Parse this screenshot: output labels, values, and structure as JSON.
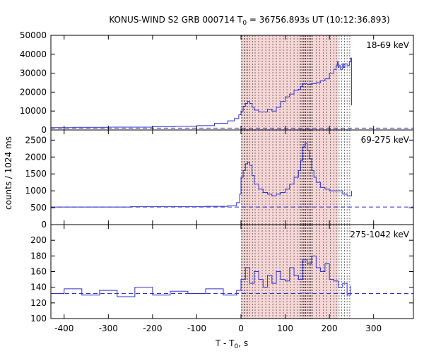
{
  "chart_data": {
    "type": "line",
    "title": "KONUS-WIND S2 GRB 000714 T",
    "title_sub": "0",
    "title_rest": " = 36756.893s UT (10:12:36.893)",
    "ylabel": "counts / 1024 ms",
    "xlabel_main": "T - T",
    "xlabel_sub": "0",
    "xlabel_rest": ", s",
    "xlim": [
      -430,
      390
    ],
    "x_ticks": [
      -400,
      -300,
      -200,
      -100,
      0,
      100,
      200,
      300
    ],
    "grid": false,
    "series_color": "#3030cc",
    "highlight_color": "#f7d6d6",
    "highlight_range": [
      0,
      220
    ],
    "dashed_line_times": [
      2,
      8,
      14,
      20,
      26,
      32,
      40,
      48,
      56,
      64,
      72,
      80,
      88,
      96,
      104,
      112,
      120,
      128,
      134,
      138,
      142,
      146,
      150,
      154,
      158,
      162,
      170,
      178,
      186,
      194,
      202,
      210,
      216,
      222,
      228,
      234,
      240,
      246
    ],
    "dashed_line_dark_times": [
      2,
      8,
      14,
      134,
      138,
      142,
      146,
      150,
      154,
      158
    ],
    "panels": [
      {
        "label": "18-69 keV",
        "ylim": [
          0,
          50000
        ],
        "y_ticks": [
          0,
          10000,
          20000,
          30000,
          40000,
          50000
        ],
        "background_level": 1000,
        "x": [
          -430,
          -380,
          -300,
          -200,
          -150,
          -100,
          -60,
          -30,
          -15,
          -5,
          0,
          5,
          10,
          15,
          20,
          25,
          30,
          40,
          50,
          60,
          70,
          80,
          90,
          100,
          110,
          120,
          130,
          135,
          140,
          150,
          160,
          170,
          180,
          190,
          200,
          210,
          215,
          218,
          220,
          222,
          225,
          230,
          232,
          235,
          240,
          245,
          248,
          250
        ],
        "y": [
          1200,
          1400,
          1500,
          1700,
          1900,
          2300,
          3500,
          4800,
          6000,
          8000,
          10000,
          12500,
          14000,
          15000,
          14000,
          12000,
          10500,
          9500,
          9500,
          11000,
          10000,
          12000,
          15000,
          17500,
          19000,
          21000,
          21500,
          23000,
          24500,
          24000,
          24500,
          25000,
          26000,
          27000,
          30000,
          32000,
          34000,
          36000,
          33000,
          34000,
          32000,
          35000,
          33000,
          35000,
          34000,
          36000,
          38000,
          13000
        ]
      },
      {
        "label": "69-275 keV",
        "ylim": [
          0,
          2800
        ],
        "y_ticks": [
          0,
          500,
          1000,
          1500,
          2000,
          2500
        ],
        "background_level": 520,
        "x": [
          -430,
          -350,
          -250,
          -150,
          -80,
          -30,
          -10,
          -3,
          0,
          5,
          10,
          15,
          20,
          25,
          30,
          40,
          50,
          60,
          70,
          80,
          90,
          100,
          110,
          120,
          130,
          135,
          140,
          145,
          150,
          155,
          160,
          165,
          170,
          180,
          190,
          200,
          210,
          220,
          230,
          240,
          250
        ],
        "y": [
          520,
          520,
          530,
          530,
          540,
          560,
          650,
          900,
          1400,
          1600,
          1800,
          1850,
          1750,
          1450,
          1200,
          1050,
          950,
          900,
          850,
          900,
          950,
          1050,
          1200,
          1400,
          1600,
          1900,
          2300,
          2400,
          2200,
          1950,
          1600,
          1400,
          1250,
          1100,
          1050,
          1000,
          1000,
          1000,
          900,
          850,
          1000
        ]
      },
      {
        "label": "275-1042 keV",
        "ylim": [
          100,
          220
        ],
        "y_ticks": [
          100,
          120,
          140,
          160,
          180,
          200
        ],
        "background_level": 132,
        "x": [
          -430,
          -400,
          -360,
          -320,
          -280,
          -240,
          -200,
          -160,
          -120,
          -80,
          -40,
          -10,
          0,
          10,
          20,
          30,
          40,
          50,
          60,
          70,
          80,
          90,
          100,
          110,
          120,
          130,
          140,
          150,
          160,
          170,
          180,
          190,
          200,
          210,
          220,
          230,
          240,
          248
        ],
        "y": [
          132,
          138,
          130,
          136,
          128,
          140,
          130,
          135,
          132,
          138,
          130,
          136,
          150,
          165,
          145,
          160,
          150,
          140,
          155,
          145,
          160,
          150,
          148,
          165,
          155,
          150,
          175,
          170,
          180,
          165,
          160,
          170,
          150,
          148,
          140,
          145,
          130,
          142
        ]
      }
    ],
    "x_tick_labels": [
      "-400",
      "-300",
      "-200",
      "-100",
      "0",
      "100",
      "200",
      "300"
    ]
  }
}
